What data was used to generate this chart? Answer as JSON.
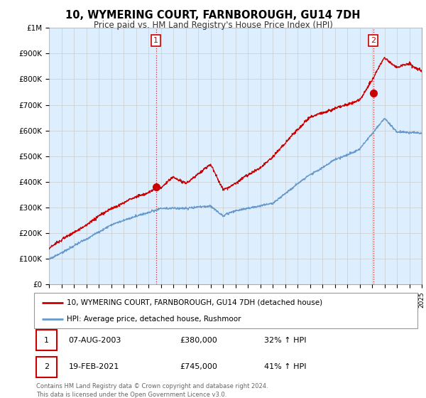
{
  "title": "10, WYMERING COURT, FARNBOROUGH, GU14 7DH",
  "subtitle": "Price paid vs. HM Land Registry's House Price Index (HPI)",
  "yticks": [
    0,
    100000,
    200000,
    300000,
    400000,
    500000,
    600000,
    700000,
    800000,
    900000,
    1000000
  ],
  "ytick_labels": [
    "£0",
    "£100K",
    "£200K",
    "£300K",
    "£400K",
    "£500K",
    "£600K",
    "£700K",
    "£800K",
    "£900K",
    "£1M"
  ],
  "xmin": 1995,
  "xmax": 2025,
  "ymin": 0,
  "ymax": 1000000,
  "sale1_x": 2003.6,
  "sale1_y": 380000,
  "sale2_x": 2021.1,
  "sale2_y": 745000,
  "sale_color": "#cc0000",
  "hpi_color": "#6699cc",
  "vline_color": "#cc0000",
  "chart_bg": "#ddeeff",
  "legend_line1": "10, WYMERING COURT, FARNBOROUGH, GU14 7DH (detached house)",
  "legend_line2": "HPI: Average price, detached house, Rushmoor",
  "table_row1": [
    "1",
    "07-AUG-2003",
    "£380,000",
    "32% ↑ HPI"
  ],
  "table_row2": [
    "2",
    "19-FEB-2021",
    "£745,000",
    "41% ↑ HPI"
  ],
  "footnote": "Contains HM Land Registry data © Crown copyright and database right 2024.\nThis data is licensed under the Open Government Licence v3.0.",
  "background_color": "#ffffff",
  "grid_color": "#cccccc"
}
